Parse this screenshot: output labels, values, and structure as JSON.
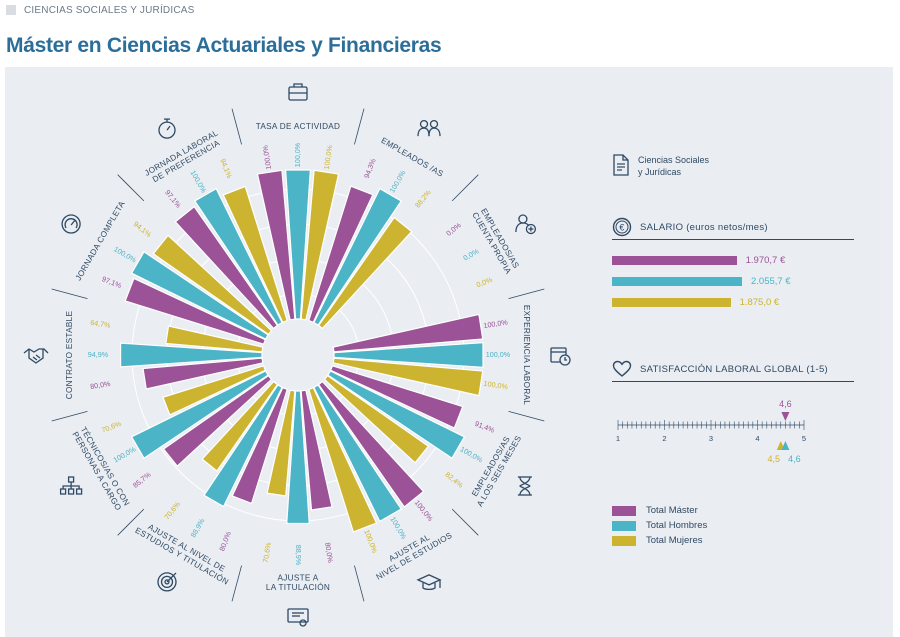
{
  "breadcrumb": "CIENCIAS SOCIALES Y JURÍDICAS",
  "page_title": "Máster en Ciencias Actuariales y Financieras",
  "colors": {
    "master": "#9b5297",
    "hombres": "#4bb4c6",
    "mujeres": "#ccb431",
    "text": "#2f4a64",
    "title": "#2b6e99"
  },
  "area": {
    "icon": "document-icon",
    "label": "Ciencias Sociales\ny Jurídicas"
  },
  "salario": {
    "title": "SALARIO (euros netos/mes)",
    "icon": "euro-coin-icon",
    "rows": [
      {
        "series": "master",
        "value": 1970.7,
        "label": "1.970,7 €"
      },
      {
        "series": "hombres",
        "value": 2055.7,
        "label": "2.055,7 €"
      },
      {
        "series": "mujeres",
        "value": 1875.0,
        "label": "1.875,0 €"
      }
    ]
  },
  "satisfaccion": {
    "title": "SATISFACCIÓN LABORAL GLOBAL (1-5)",
    "icon": "heart-icon",
    "scale_min": 1,
    "scale_max": 5,
    "ticks": [
      "1",
      "2",
      "3",
      "4",
      "5"
    ],
    "master": {
      "value": 4.6,
      "label": "4,6"
    },
    "hombres": {
      "value": 4.6,
      "label": "4,6"
    },
    "mujeres": {
      "value": 4.5,
      "label": "4,5"
    }
  },
  "legend": [
    {
      "series": "master",
      "label": "Total Máster"
    },
    {
      "series": "hombres",
      "label": "Total Hombres"
    },
    {
      "series": "mujeres",
      "label": "Total Mujeres"
    }
  ],
  "chart_data": {
    "type": "radial-bar",
    "series_order": [
      "Total Máster",
      "Total Hombres",
      "Total Mujeres"
    ],
    "ylim": [
      0,
      100
    ],
    "categories": [
      {
        "label": [
          "TASA DE ACTIVIDAD"
        ],
        "icon": "briefcase-icon",
        "values": [
          100.0,
          100.0,
          100.0
        ],
        "labels": [
          "100,0%",
          "100,0%",
          "100,0%"
        ]
      },
      {
        "label": [
          "EMPLEADOS /AS"
        ],
        "icon": "people-icon",
        "values": [
          94.3,
          100.0,
          88.2
        ],
        "labels": [
          "94,3%",
          "100,0%",
          "88,2%"
        ]
      },
      {
        "label": [
          "EMPLEADOS/AS",
          "CUENTA PROPIA"
        ],
        "icon": "user-plus-icon",
        "values": [
          0.0,
          0.0,
          0.0
        ],
        "labels": [
          "0,0%",
          "0,0%",
          "0,0%"
        ]
      },
      {
        "label": [
          "EXPERIENCIA LABORAL"
        ],
        "icon": "calendar-clock-icon",
        "values": [
          100.0,
          100.0,
          100.0
        ],
        "labels": [
          "100,0%",
          "100,0%",
          "100,0%"
        ]
      },
      {
        "label": [
          "EMPLEADOS/AS",
          "A LOS SEIS MESES"
        ],
        "icon": "hourglass-icon",
        "values": [
          91.4,
          100.0,
          82.4
        ],
        "labels": [
          "91,4%",
          "100,0%",
          "82,4%"
        ]
      },
      {
        "label": [
          "AJUSTE AL",
          "NIVEL DE ESTUDIOS"
        ],
        "icon": "graduation-cap-icon",
        "values": [
          100.0,
          100.0,
          100.0
        ],
        "labels": [
          "100,0%",
          "100,0%",
          "100,0%"
        ]
      },
      {
        "label": [
          "AJUSTE A",
          "LA TITULACIÓN"
        ],
        "icon": "certificate-icon",
        "values": [
          80.0,
          88.9,
          70.6
        ],
        "labels": [
          "80,0%",
          "88,9%",
          "70,6%"
        ]
      },
      {
        "label": [
          "AJUSTE AL NIVEL DE",
          "ESTUDIOS Y TITULACIÓN"
        ],
        "icon": "target-icon",
        "values": [
          80.0,
          88.9,
          70.6
        ],
        "labels": [
          "80,0%",
          "88,9%",
          "70,6%"
        ]
      },
      {
        "label": [
          "TÉCNICOS/AS O CON",
          "PERSONAS A CARGO"
        ],
        "icon": "org-chart-icon",
        "values": [
          85.7,
          100.0,
          70.6
        ],
        "labels": [
          "85,7%",
          "100,0%",
          "70,6%"
        ]
      },
      {
        "label": [
          "CONTRATO ESTABLE"
        ],
        "icon": "handshake-icon",
        "values": [
          80.0,
          94.9,
          64.7
        ],
        "labels": [
          "80,0%",
          "94,9%",
          "64,7%"
        ]
      },
      {
        "label": [
          "JORNADA COMPLETA"
        ],
        "icon": "gauge-icon",
        "values": [
          97.1,
          100.0,
          94.1
        ],
        "labels": [
          "97,1%",
          "100,0%",
          "94,1%"
        ]
      },
      {
        "label": [
          "JORNADA LABORAL",
          "DE PREFERENCIA"
        ],
        "icon": "stopwatch-icon",
        "values": [
          97.1,
          100.0,
          94.1
        ],
        "labels": [
          "97,1%",
          "100,0%",
          "94,1%"
        ]
      }
    ]
  }
}
